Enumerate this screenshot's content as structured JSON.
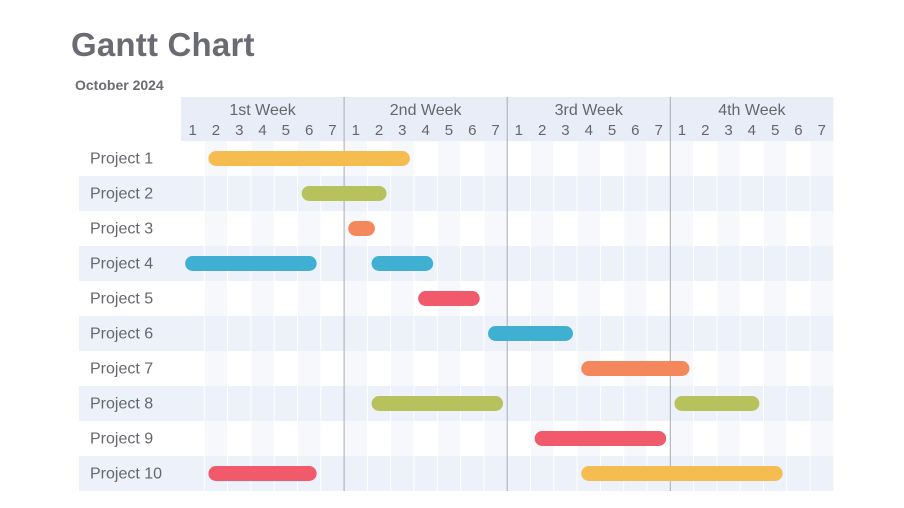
{
  "title": "Gantt Chart",
  "subtitle": "October 2024",
  "colors": {
    "yellow": "#f5bd4f",
    "olive": "#b8c25c",
    "orange": "#f5875c",
    "blue": "#3fb0d2",
    "red": "#f05a6b",
    "header_bg": "#e9edf8",
    "row_band": "#edf1f9",
    "cell_alt": "#f7f8fc",
    "text": "#66666e",
    "week_line": "#a9abb3"
  },
  "chart_data": {
    "type": "gantt",
    "title": "Gantt Chart",
    "subtitle": "October 2024",
    "weeks": [
      "1st Week",
      "2nd Week",
      "3rd Week",
      "4th Week"
    ],
    "days": [
      "1",
      "2",
      "3",
      "4",
      "5",
      "6",
      "7"
    ],
    "tasks": [
      {
        "name": "Project 1",
        "bars": [
          {
            "start": 2,
            "end": 10,
            "color": "yellow"
          }
        ]
      },
      {
        "name": "Project 2",
        "bars": [
          {
            "start": 6,
            "end": 9,
            "color": "olive"
          }
        ]
      },
      {
        "name": "Project 3",
        "bars": [
          {
            "start": 8,
            "end": 8.5,
            "color": "orange"
          }
        ]
      },
      {
        "name": "Project 4",
        "bars": [
          {
            "start": 1,
            "end": 6,
            "color": "blue"
          },
          {
            "start": 9,
            "end": 11,
            "color": "blue"
          }
        ]
      },
      {
        "name": "Project 5",
        "bars": [
          {
            "start": 11,
            "end": 13,
            "color": "red"
          }
        ]
      },
      {
        "name": "Project 6",
        "bars": [
          {
            "start": 14,
            "end": 17,
            "color": "blue"
          }
        ]
      },
      {
        "name": "Project 7",
        "bars": [
          {
            "start": 18,
            "end": 22,
            "color": "orange"
          }
        ]
      },
      {
        "name": "Project 8",
        "bars": [
          {
            "start": 9,
            "end": 14,
            "color": "olive"
          },
          {
            "start": 22,
            "end": 25,
            "color": "olive"
          }
        ]
      },
      {
        "name": "Project 9",
        "bars": [
          {
            "start": 16,
            "end": 21,
            "color": "red"
          }
        ]
      },
      {
        "name": "Project 10",
        "bars": [
          {
            "start": 2,
            "end": 6,
            "color": "red"
          },
          {
            "start": 18,
            "end": 26,
            "color": "yellow"
          }
        ]
      }
    ]
  }
}
